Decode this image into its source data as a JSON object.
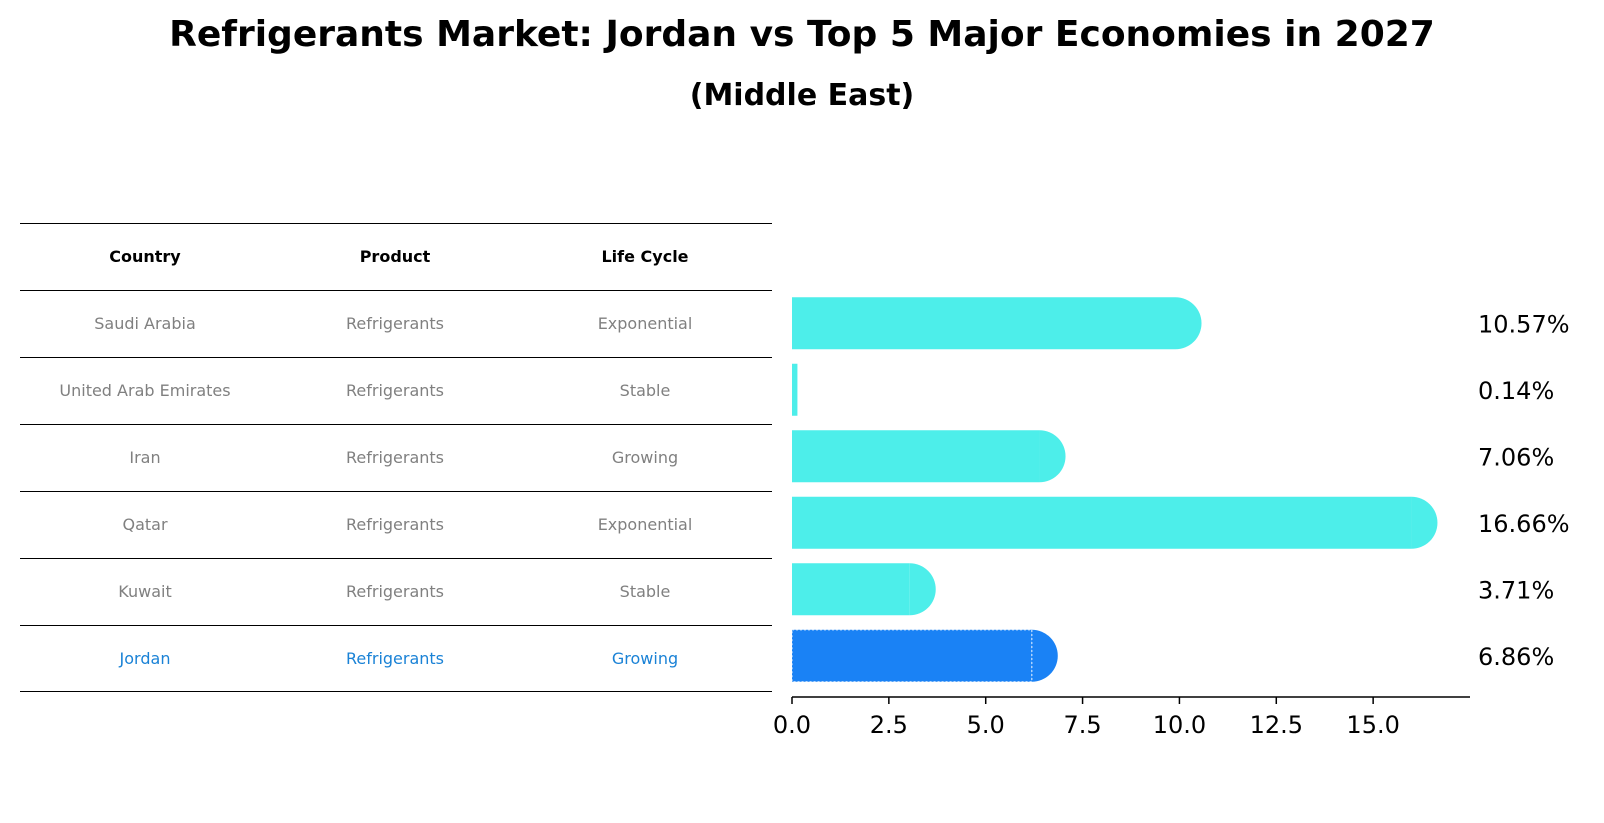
{
  "title": "Refrigerants Market: Jordan vs Top 5 Major Economies in 2027",
  "subtitle": "(Middle East)",
  "table": {
    "headers": [
      "Country",
      "Product",
      "Life Cycle"
    ],
    "rows": [
      [
        "Saudi Arabia",
        "Refrigerants",
        "Exponential"
      ],
      [
        "United Arab Emirates",
        "Refrigerants",
        "Stable"
      ],
      [
        "Iran",
        "Refrigerants",
        "Growing"
      ],
      [
        "Qatar",
        "Refrigerants",
        "Exponential"
      ],
      [
        "Kuwait",
        "Refrigerants",
        "Stable"
      ],
      [
        "Jordan",
        "Refrigerants",
        "Growing"
      ]
    ],
    "highlight_row": "Jordan"
  },
  "chart_data": {
    "type": "bar",
    "orientation": "horizontal",
    "categories": [
      "Saudi Arabia",
      "United Arab Emirates",
      "Iran",
      "Qatar",
      "Kuwait",
      "Jordan"
    ],
    "values": [
      10.57,
      0.14,
      7.06,
      16.66,
      3.71,
      6.86
    ],
    "value_labels": [
      "10.57%",
      "0.14%",
      "7.06%",
      "16.66%",
      "3.71%",
      "6.86%"
    ],
    "xticks": [
      "0.0",
      "2.5",
      "5.0",
      "7.5",
      "10.0",
      "12.5",
      "15.0"
    ],
    "xlim": [
      0,
      17.5
    ],
    "grid": false,
    "colors": {
      "default": "#4deeea",
      "highlight": "#1a82f5",
      "text": "#000000"
    },
    "highlight": "Jordan"
  }
}
